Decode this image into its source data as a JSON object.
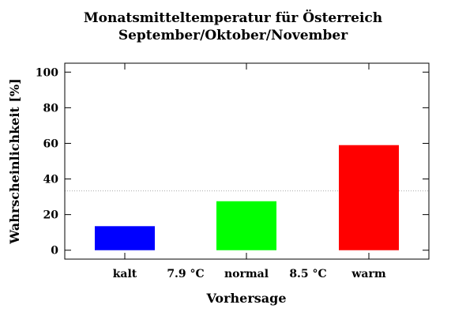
{
  "chart_data": {
    "type": "bar",
    "title_lines": [
      "Monatsmitteltemperatur für Österreich",
      "September/Oktober/November"
    ],
    "xlabel": "Vorhersage",
    "ylabel": "Wahrscheinlichkeit [%]",
    "categories": [
      "kalt",
      "normal",
      "warm"
    ],
    "values": [
      13.5,
      27.5,
      59
    ],
    "colors": [
      "#0000ff",
      "#00ff00",
      "#ff0000"
    ],
    "thresholds": [
      "7.9 °C",
      "8.5 °C"
    ],
    "reference_line": 33.3,
    "ylim": [
      -5,
      105
    ],
    "yticks": [
      0,
      20,
      40,
      60,
      80,
      100
    ],
    "grid": false,
    "legend": "none"
  }
}
